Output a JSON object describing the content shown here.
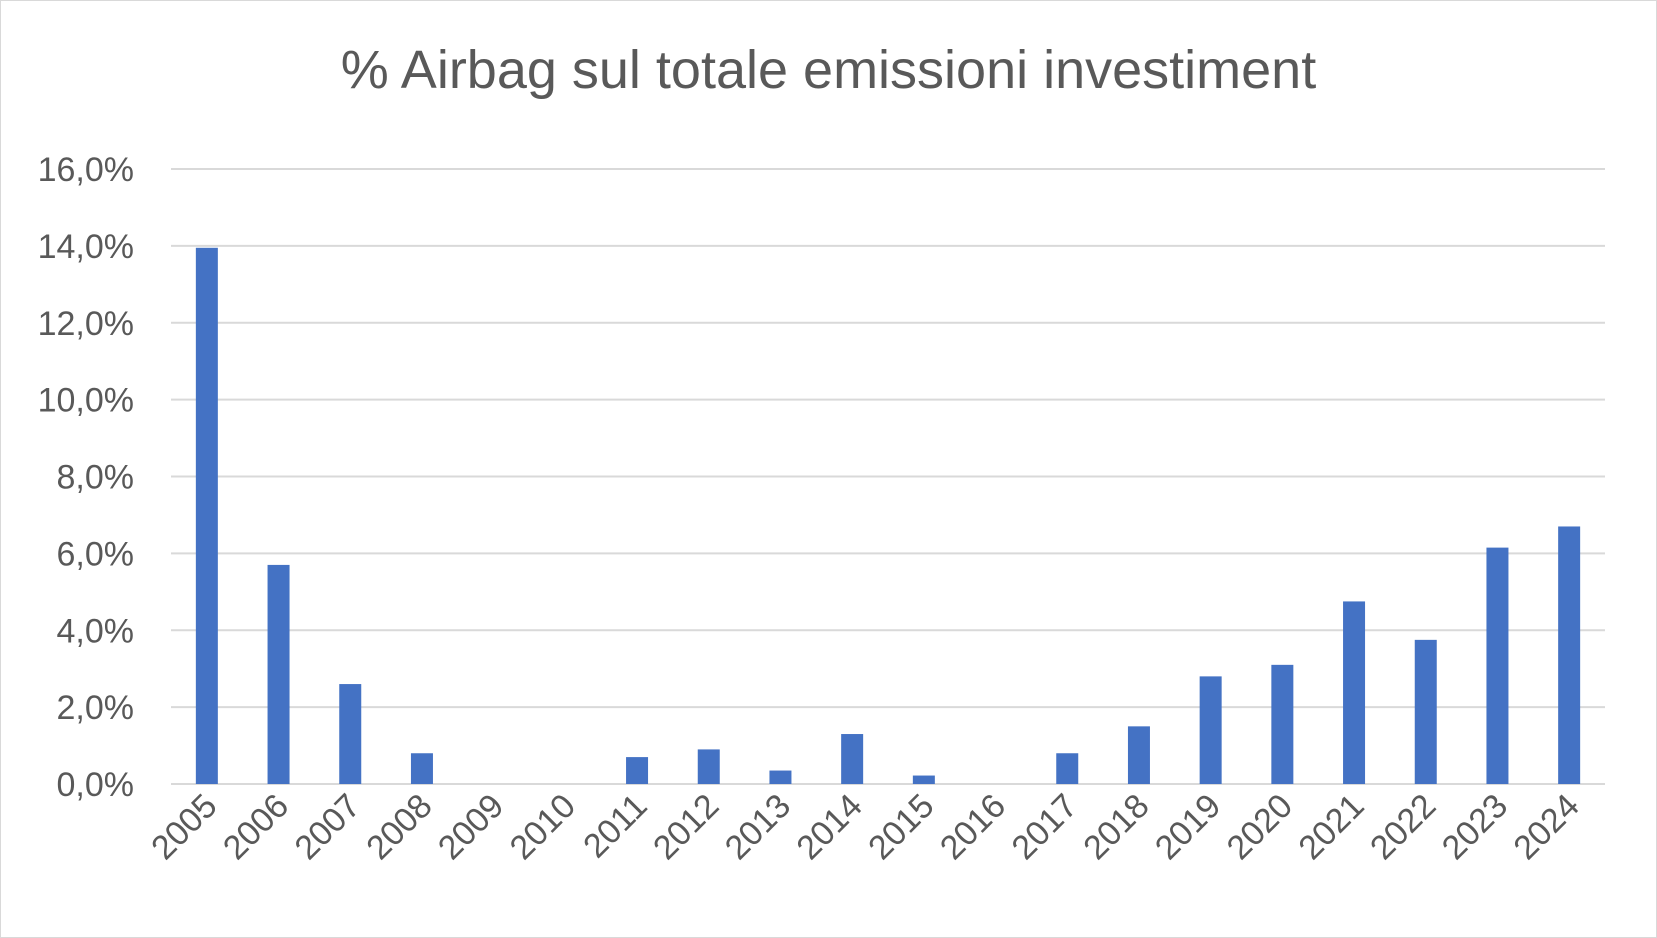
{
  "chart_data": {
    "type": "bar",
    "title": "% Airbag sul totale emissioni investiment",
    "xlabel": "",
    "ylabel": "",
    "categories": [
      "2005",
      "2006",
      "2007",
      "2008",
      "2009",
      "2010",
      "2011",
      "2012",
      "2013",
      "2014",
      "2015",
      "2016",
      "2017",
      "2018",
      "2019",
      "2020",
      "2021",
      "2022",
      "2023",
      "2024"
    ],
    "values": [
      13.95,
      5.7,
      2.6,
      0.8,
      0.0,
      0.0,
      0.7,
      0.9,
      0.35,
      1.3,
      0.22,
      0.0,
      0.8,
      1.5,
      2.8,
      3.1,
      4.75,
      3.75,
      6.15,
      6.7
    ],
    "ylim": [
      0,
      16
    ],
    "yticks": [
      0,
      2,
      4,
      6,
      8,
      10,
      12,
      14,
      16
    ],
    "ytick_labels": [
      "0,0%",
      "2,0%",
      "4,0%",
      "6,0%",
      "8,0%",
      "10,0%",
      "12,0%",
      "14,0%",
      "16,0%"
    ],
    "grid": true,
    "legend": "none",
    "colors": {
      "bar": "#4472c4",
      "grid": "#d9d9d9",
      "text": "#595959",
      "frame": "#d9d9d9"
    }
  }
}
